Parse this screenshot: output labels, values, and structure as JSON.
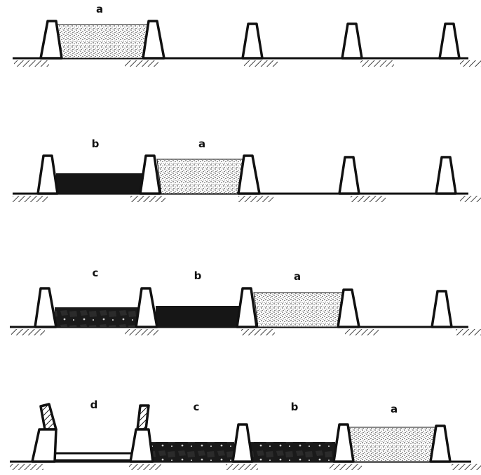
{
  "diagram": {
    "rows": [
      {
        "id": "row-1",
        "labels": [
          "a"
        ],
        "pillars": 5,
        "fills": [
          "a"
        ]
      },
      {
        "id": "row-2",
        "labels": [
          "b",
          "a"
        ],
        "pillars": 5,
        "fills": [
          "b",
          "a"
        ]
      },
      {
        "id": "row-3",
        "labels": [
          "c",
          "b",
          "a"
        ],
        "pillars": 5,
        "fills": [
          "c",
          "b",
          "a"
        ]
      },
      {
        "id": "row-4",
        "labels": [
          "d",
          "c",
          "b",
          "a"
        ],
        "pillars": 5,
        "fills": [
          "d",
          "c",
          "b",
          "a"
        ]
      }
    ],
    "fill_styles": {
      "a": "stippled",
      "b": "solid-dark",
      "c": "blocky-dark",
      "d": "empty-raised-hatched"
    },
    "colors": {
      "ink": "#111111",
      "paper": "#ffffff"
    }
  }
}
